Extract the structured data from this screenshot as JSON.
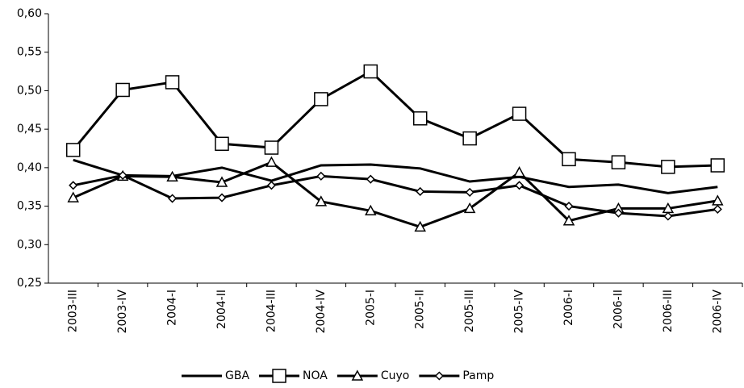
{
  "chart_data": {
    "type": "line",
    "categories": [
      "2003-III",
      "2003-IV",
      "2004-I",
      "2004-II",
      "2004-III",
      "2004-IV",
      "2005-I",
      "2005-II",
      "2005-III",
      "2005-IV",
      "2006-I",
      "2006-II",
      "2006-III",
      "2006-IV"
    ],
    "series": [
      {
        "name": "GBA",
        "color": "#000000",
        "marker": "none",
        "values": [
          0.41,
          0.39,
          0.389,
          0.4,
          0.383,
          0.403,
          0.404,
          0.399,
          0.382,
          0.388,
          0.375,
          0.378,
          0.367,
          0.375
        ]
      },
      {
        "name": "NOA",
        "color": "#000000",
        "marker": "square",
        "values": [
          0.423,
          0.501,
          0.511,
          0.431,
          0.426,
          0.489,
          0.525,
          0.464,
          0.438,
          0.47,
          0.411,
          0.407,
          0.401,
          0.403
        ]
      },
      {
        "name": "Cuyo",
        "color": "#000000",
        "marker": "triangle",
        "values": [
          0.361,
          0.389,
          0.388,
          0.381,
          0.407,
          0.356,
          0.344,
          0.323,
          0.347,
          0.394,
          0.331,
          0.347,
          0.347,
          0.357
        ]
      },
      {
        "name": "Pamp",
        "color": "#000000",
        "marker": "diamond",
        "values": [
          0.377,
          0.39,
          0.36,
          0.361,
          0.377,
          0.389,
          0.385,
          0.369,
          0.368,
          0.377,
          0.35,
          0.341,
          0.337,
          0.346
        ]
      }
    ],
    "ylim": [
      0.25,
      0.6
    ],
    "yticks": [
      {
        "value": 0.25,
        "label": "0,25"
      },
      {
        "value": 0.3,
        "label": "0,30"
      },
      {
        "value": 0.35,
        "label": "0,35"
      },
      {
        "value": 0.4,
        "label": "0,40"
      },
      {
        "value": 0.45,
        "label": "0,45"
      },
      {
        "value": 0.5,
        "label": "0,50"
      },
      {
        "value": 0.55,
        "label": "0,55"
      },
      {
        "value": 0.6,
        "label": "0,60"
      }
    ],
    "grid": false,
    "legend": "bottom"
  }
}
